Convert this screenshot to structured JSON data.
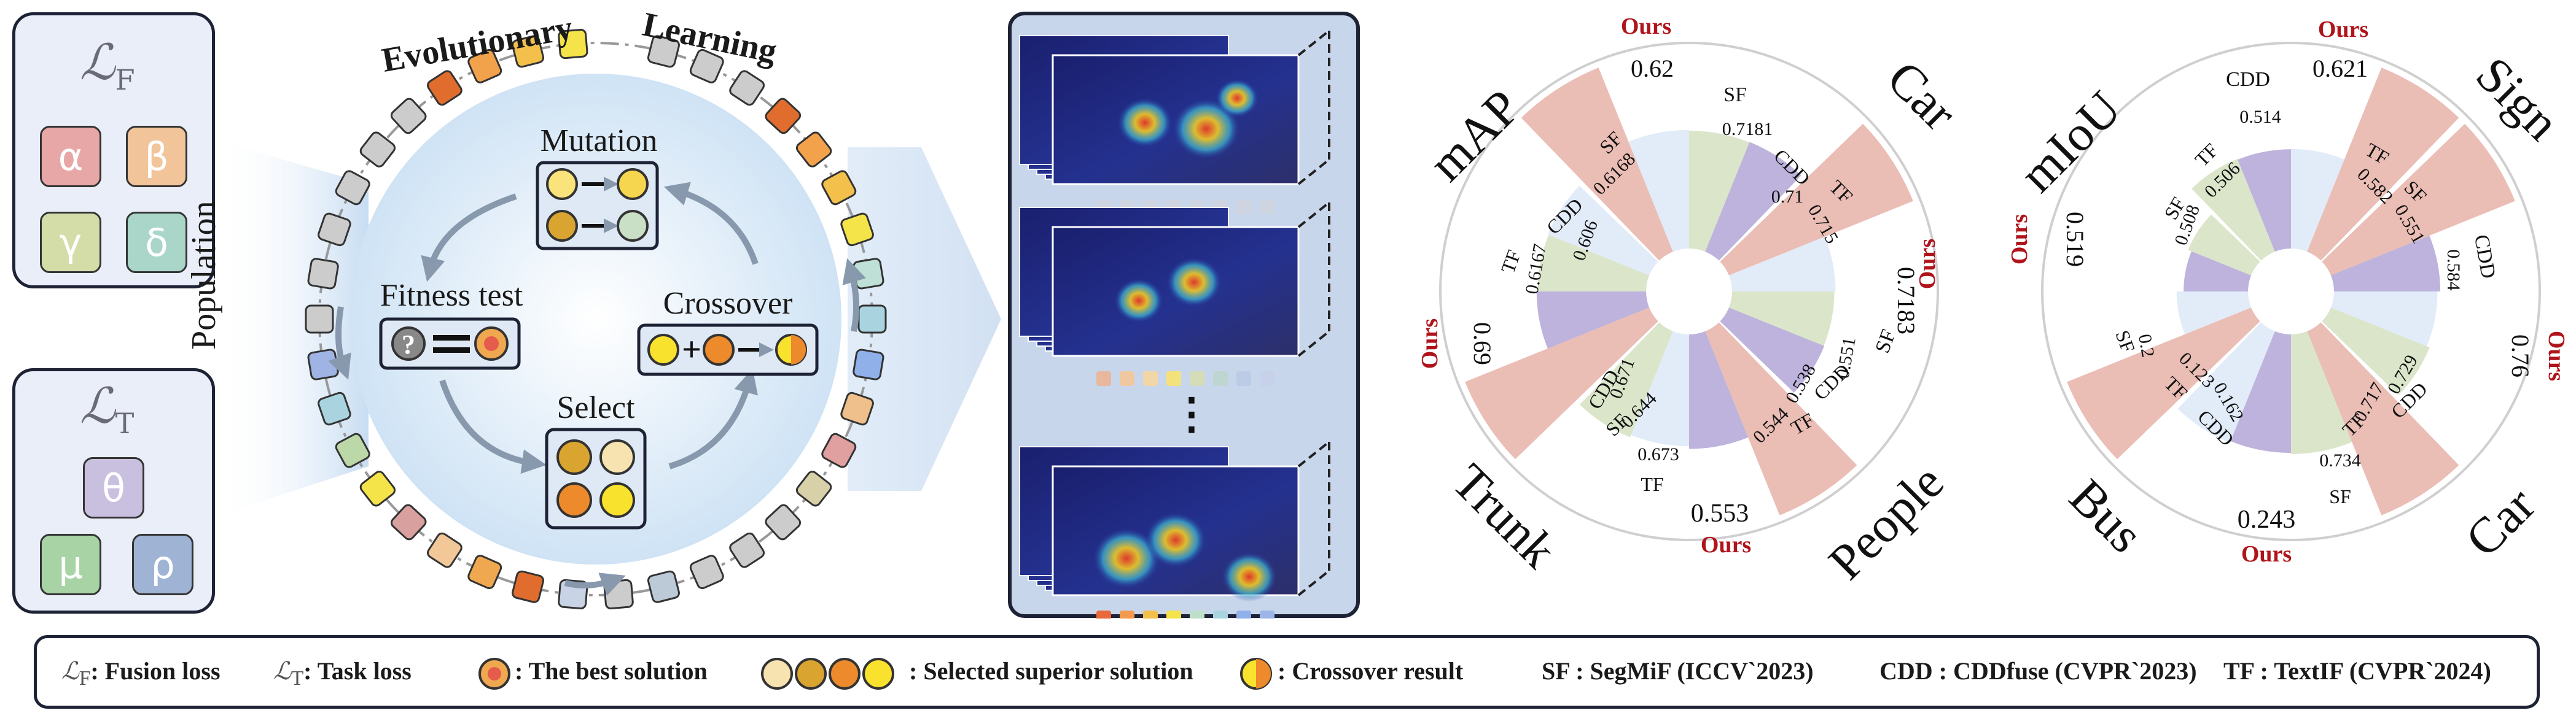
{
  "fusion_loss_panel": {
    "title": "ℒ",
    "subscript": "F",
    "params": [
      {
        "symbol": "α",
        "color": "#e7a7a6"
      },
      {
        "symbol": "β",
        "color": "#f2c49a"
      },
      {
        "symbol": "γ",
        "color": "#d4dca8"
      },
      {
        "symbol": "δ",
        "color": "#a9d6c8"
      }
    ]
  },
  "task_loss_panel": {
    "title": "ℒ",
    "subscript": "T",
    "params": [
      {
        "symbol": "θ",
        "color": "#c9c0e0"
      },
      {
        "symbol": "μ",
        "color": "#a8d4a5"
      },
      {
        "symbol": "ρ",
        "color": "#9fb4d4"
      }
    ]
  },
  "evolution": {
    "title_word1": "Evolutionary",
    "title_word2": "Learning",
    "population_label": "Population",
    "steps": {
      "mutation": "Mutation",
      "fitness": "Fitness test",
      "crossover": "Crossover",
      "select": "Select"
    }
  },
  "feature_maps": {
    "ellipsis": "⋮"
  },
  "radar_det": {
    "corner_labels": {
      "top_left": "mAP",
      "top_right": "Car",
      "bottom_left": "Trunk",
      "bottom_right": "People"
    },
    "groups": [
      {
        "name": "mAP",
        "ours": 0.62,
        "sf": 0.7181,
        "cdd": 0.71,
        "tf": 0.715
      },
      {
        "name": "Car",
        "ours": 0.7183,
        "sf": 0.551,
        "cdd": 0.538,
        "tf": 0.544
      },
      {
        "name": "People",
        "ours": 0.553,
        "sf": 0.644,
        "cdd": 0.671,
        "tf": 0.673
      },
      {
        "name": "Trunk",
        "ours": 0.69,
        "sf": 0.6168,
        "cdd": 0.606,
        "tf": 0.6167
      }
    ],
    "labels": {
      "ours": "Ours",
      "v1": "0.62",
      "v2": "SF",
      "v3": "0.7181",
      "v4": "CDD",
      "v5": "0.71",
      "v6": "TF",
      "v7": "0.715",
      "v8": "0.7183",
      "v9": "SF",
      "v10": "0.551",
      "v11": "CDD",
      "v12": "0.538",
      "v13": "TF",
      "v14": "0.544",
      "v15": "0.553",
      "v16": "TF",
      "v17": "0.673",
      "v18": "SF",
      "v19": "0.644",
      "v20": "CDD",
      "v21": "0.671",
      "v22": "0.69",
      "v23": "TF",
      "v24": "0.6167",
      "v25": "CDD",
      "v26": "0.606",
      "v27": "SF",
      "v28": "0.6168"
    }
  },
  "radar_seg": {
    "corner_labels": {
      "top_left": "mIoU",
      "top_right": "Sign",
      "bottom_left": "Bus",
      "bottom_right": "Car"
    },
    "groups": [
      {
        "name": "mIoU",
        "ours": 0.621,
        "cdd": 0.514,
        "tf": 0.506,
        "sf": 0.508
      },
      {
        "name": "Sign",
        "ours": 0.76,
        "tf": 0.582,
        "sf": 0.551,
        "cdd": 0.584
      },
      {
        "name": "Car",
        "ours": 0.243,
        "cdd": 0.729,
        "tf": 0.717,
        "sf": 0.734
      },
      {
        "name": "Bus",
        "ours": 0.519,
        "sf": 0.2,
        "tf": 0.123,
        "cdd": 0.162
      }
    ],
    "labels": {
      "ours": "Ours",
      "v1": "0.621",
      "v2": "CDD",
      "v3": "0.514",
      "v4": "TF",
      "v5": "0.506",
      "v6": "SF",
      "v7": "0.508",
      "v8": "TF",
      "v9": "0.582",
      "v10": "SF",
      "v11": "0.551",
      "v12": "CDD",
      "v13": "0.584",
      "v14": "0.76",
      "v15": "0.243",
      "v16": "SF",
      "v17": "0.734",
      "v18": "TF",
      "v19": "0.717",
      "v20": "CDD",
      "v21": "0.729",
      "v22": "0.519",
      "v23": "SF",
      "v24": "0.2",
      "v25": "TF",
      "v26": "0.123",
      "v27": "CDD",
      "v28": "0.162"
    }
  },
  "legend": {
    "fusion_sym": "ℒ",
    "fusion_sub": "F",
    "fusion_text": ": Fusion loss",
    "task_sym": "ℒ",
    "task_sub": "T",
    "task_text": ": Task loss",
    "best": ": The best solution",
    "selected": ": Selected superior solution",
    "crossover": ": Crossover result",
    "sf": "SF : SegMiF (ICCV`2023)",
    "cdd": "CDD : CDDfuse (CVPR`2023)",
    "tf": "TF : TextIF (CVPR`2024)"
  },
  "colors": {
    "ours": "#e8b6ad",
    "sf": "#dfe9f7",
    "cdd": "#d7e2c4",
    "tf": "#b6abd8",
    "ours_label": "#b0141b",
    "accent_dark": "#1e2235"
  }
}
